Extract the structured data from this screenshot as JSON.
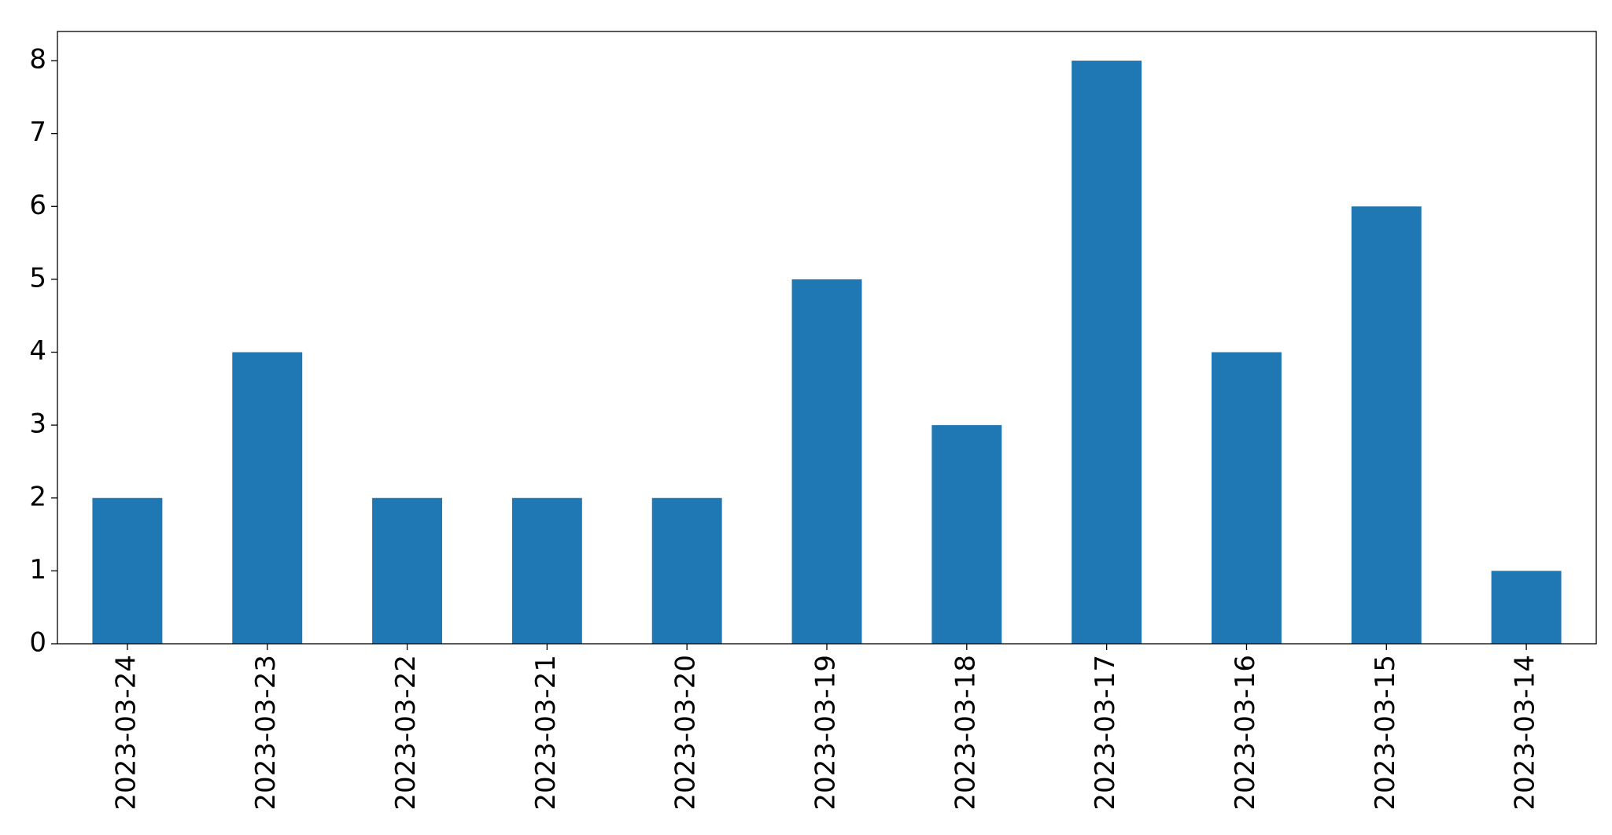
{
  "chart_data": {
    "type": "bar",
    "categories": [
      "2023-03-24",
      "2023-03-23",
      "2023-03-22",
      "2023-03-21",
      "2023-03-20",
      "2023-03-19",
      "2023-03-18",
      "2023-03-17",
      "2023-03-16",
      "2023-03-15",
      "2023-03-14"
    ],
    "values": [
      2,
      4,
      2,
      2,
      2,
      5,
      3,
      8,
      4,
      6,
      1
    ],
    "color": "#1f77b4",
    "ylim": [
      0,
      8.4
    ],
    "yticks": [
      0,
      1,
      2,
      3,
      4,
      5,
      6,
      7,
      8
    ],
    "grid": false
  }
}
